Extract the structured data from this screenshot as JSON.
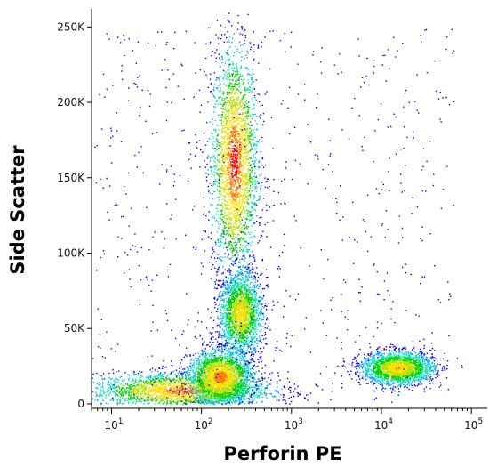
{
  "chart_data": {
    "type": "scatter",
    "title": "",
    "xlabel": "Perforin PE",
    "ylabel": "Side Scatter",
    "x_scale": "log",
    "xlim": [
      6,
      150000
    ],
    "ylim": [
      -3000,
      262000
    ],
    "grid": false,
    "legend": "none",
    "x_ticks": [
      {
        "value": 10,
        "label": "10",
        "exp": "1"
      },
      {
        "value": 100,
        "label": "10",
        "exp": "2"
      },
      {
        "value": 1000,
        "label": "10",
        "exp": "3"
      },
      {
        "value": 10000,
        "label": "10",
        "exp": "4"
      },
      {
        "value": 100000,
        "label": "10",
        "exp": "5"
      }
    ],
    "y_ticks": [
      {
        "value": 0,
        "label": "0"
      },
      {
        "value": 50000,
        "label": "50K"
      },
      {
        "value": 100000,
        "label": "100K"
      },
      {
        "value": 150000,
        "label": "150K"
      },
      {
        "value": 200000,
        "label": "200K"
      },
      {
        "value": 250000,
        "label": "250K"
      }
    ],
    "color_scale": [
      "#0000ff",
      "#00aaff",
      "#00e5b0",
      "#00d000",
      "#b8e000",
      "#ffe000",
      "#ff8000",
      "#ff0000"
    ],
    "density_clusters": [
      {
        "center_x": 230,
        "center_y": 160000,
        "spread_log_x": 0.13,
        "spread_y": 38000,
        "peak": 1.0
      },
      {
        "center_x": 270,
        "center_y": 60000,
        "spread_log_x": 0.12,
        "spread_y": 14000,
        "peak": 0.75
      },
      {
        "center_x": 15000,
        "center_y": 24000,
        "spread_log_x": 0.2,
        "spread_y": 5500,
        "peak": 0.8
      },
      {
        "center_x": 60,
        "center_y": 9000,
        "spread_log_x": 0.5,
        "spread_y": 6000,
        "peak": 0.9
      },
      {
        "center_x": 160,
        "center_y": 18000,
        "spread_log_x": 0.18,
        "spread_y": 9000,
        "peak": 0.9
      }
    ]
  }
}
